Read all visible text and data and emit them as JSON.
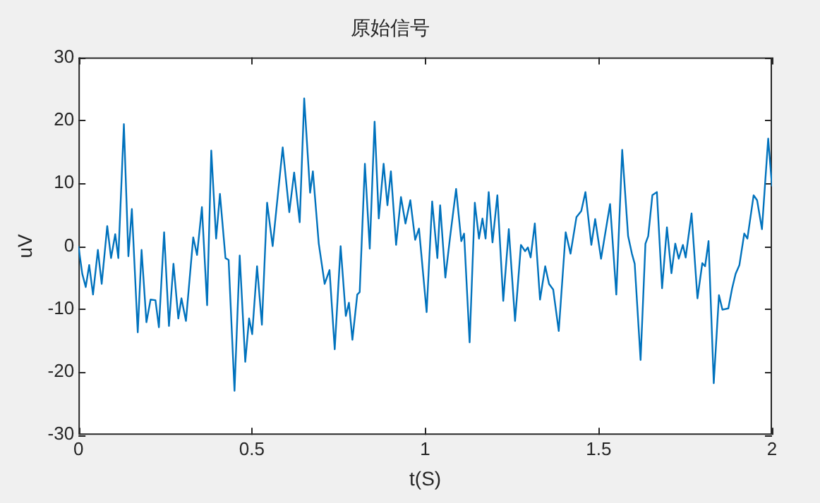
{
  "chart_data": {
    "type": "line",
    "title": "原始信号",
    "xlabel": "t(S)",
    "ylabel": "uV",
    "xlim": [
      0,
      2
    ],
    "xticks": [
      0,
      0.5,
      1,
      1.5,
      2
    ],
    "ylim": [
      -30,
      30
    ],
    "yticks": [
      -30,
      -20,
      -10,
      0,
      10,
      20,
      30
    ],
    "grid": false,
    "legend": false,
    "series": [
      {
        "color": "#0072bd",
        "x": [
          0,
          0.011,
          0.021,
          0.031,
          0.042,
          0.056,
          0.067,
          0.083,
          0.094,
          0.106,
          0.115,
          0.131,
          0.144,
          0.154,
          0.171,
          0.182,
          0.196,
          0.208,
          0.222,
          0.232,
          0.247,
          0.261,
          0.274,
          0.288,
          0.297,
          0.31,
          0.331,
          0.342,
          0.356,
          0.371,
          0.383,
          0.397,
          0.408,
          0.424,
          0.433,
          0.45,
          0.465,
          0.481,
          0.492,
          0.501,
          0.515,
          0.529,
          0.544,
          0.56,
          0.571,
          0.589,
          0.608,
          0.622,
          0.638,
          0.651,
          0.668,
          0.676,
          0.693,
          0.71,
          0.724,
          0.739,
          0.756,
          0.771,
          0.78,
          0.79,
          0.804,
          0.811,
          0.826,
          0.84,
          0.854,
          0.866,
          0.88,
          0.891,
          0.901,
          0.916,
          0.93,
          0.943,
          0.957,
          0.971,
          0.982,
          1.004,
          1.02,
          1.035,
          1.043,
          1.058,
          1.072,
          1.089,
          1.104,
          1.112,
          1.128,
          1.143,
          1.155,
          1.165,
          1.174,
          1.183,
          1.194,
          1.208,
          1.225,
          1.241,
          1.259,
          1.276,
          1.288,
          1.296,
          1.304,
          1.316,
          1.331,
          1.346,
          1.357,
          1.369,
          1.385,
          1.405,
          1.419,
          1.436,
          1.45,
          1.462,
          1.479,
          1.49,
          1.507,
          1.533,
          1.551,
          1.568,
          1.585,
          1.596,
          1.604,
          1.621,
          1.635,
          1.643,
          1.655,
          1.668,
          1.683,
          1.697,
          1.71,
          1.721,
          1.731,
          1.743,
          1.751,
          1.768,
          1.785,
          1.799,
          1.807,
          1.817,
          1.832,
          1.847,
          1.857,
          1.874,
          1.885,
          1.895,
          1.906,
          1.92,
          1.929,
          1.947,
          1.957,
          1.971,
          1.989,
          2
        ],
        "values": [
          0,
          -4.4,
          -6.5,
          -3,
          -7.7,
          -0.6,
          -6,
          3.2,
          -1.9,
          1.9,
          -1.9,
          19.4,
          -1.6,
          5.9,
          -13.7,
          -0.6,
          -12.1,
          -8.5,
          -8.6,
          -12.9,
          2.2,
          -12.7,
          -2.8,
          -11.5,
          -8.3,
          -11.9,
          1.4,
          -1.4,
          6.2,
          -9.4,
          15.2,
          1.2,
          8.3,
          -1.9,
          -2.2,
          -23,
          -1.5,
          -18.4,
          -11.5,
          -14,
          -3.2,
          -12.5,
          6.9,
          0,
          6,
          15.7,
          5.4,
          11.7,
          3.8,
          23.5,
          8.5,
          11.9,
          0.4,
          -6,
          -3.8,
          -16.4,
          0,
          -11.1,
          -9,
          -14.9,
          -7.7,
          -7.3,
          13.1,
          -0.4,
          19.8,
          4.4,
          13.1,
          6.5,
          11.9,
          0.2,
          7.8,
          3.6,
          7.3,
          1,
          2.8,
          -10.5,
          7.1,
          -1.9,
          6.5,
          -5,
          1.6,
          9.1,
          0.8,
          2,
          -15.3,
          6.9,
          1.2,
          4.4,
          1.2,
          8.6,
          0.6,
          8.1,
          -8.7,
          2.7,
          -11.9,
          0.2,
          -0.8,
          -0.2,
          -1.8,
          3.6,
          -8.5,
          -3.2,
          -6,
          -6.9,
          -13.5,
          2.2,
          -1.2,
          4.6,
          5.6,
          8.6,
          0.2,
          4.3,
          -2,
          6.7,
          -7.7,
          15.3,
          1.6,
          -1.2,
          -2.8,
          -18.1,
          0.4,
          1.6,
          8.1,
          8.6,
          -6.7,
          3,
          -4.3,
          0.4,
          -2,
          0.2,
          -1.8,
          5.2,
          -8.3,
          -2.7,
          -3.2,
          0.8,
          -21.8,
          -7.8,
          -10.1,
          -9.9,
          -6.7,
          -4.4,
          -3,
          2,
          1.2,
          8.1,
          7.3,
          2.7,
          17.1,
          9.5
        ]
      }
    ]
  }
}
